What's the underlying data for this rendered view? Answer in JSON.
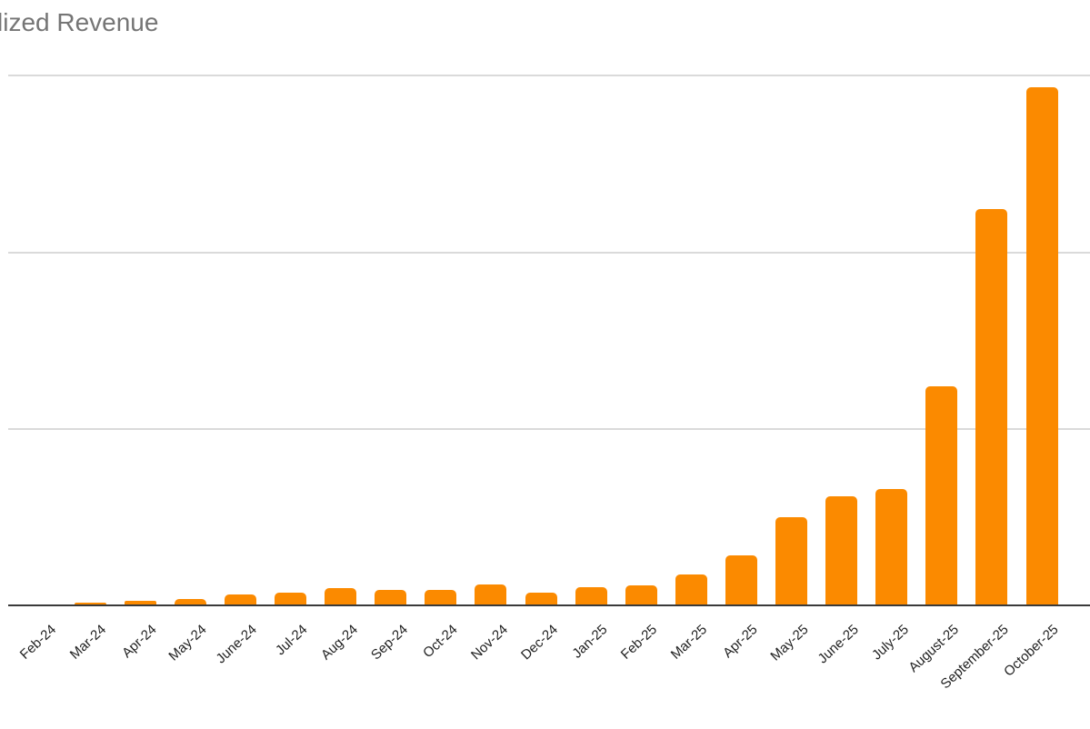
{
  "title": {
    "text": "lized Revenue",
    "color": "#757575"
  },
  "chart_data": {
    "type": "bar",
    "title": "lized Revenue",
    "categories": [
      "Feb-24",
      "Mar-24",
      "Apr-24",
      "May-24",
      "June-24",
      "Jul-24",
      "Aug-24",
      "Sep-24",
      "Oct-24",
      "Nov-24",
      "Dec-24",
      "Jan-25",
      "Feb-25",
      "Mar-25",
      "Apr-25",
      "May-25",
      "June-25",
      "July-25",
      "August-25",
      "September-25",
      "October-25"
    ],
    "values": [
      0,
      0.01,
      0.021,
      0.031,
      0.057,
      0.067,
      0.093,
      0.082,
      0.082,
      0.113,
      0.067,
      0.098,
      0.108,
      0.17,
      0.278,
      0.494,
      0.613,
      0.654,
      1.236,
      2.24,
      2.93
    ],
    "xlabel": "",
    "ylabel": "",
    "ylim": [
      0,
      3.1
    ],
    "grid": "horizontal",
    "gridline_values": [
      1,
      2,
      3
    ],
    "y_tick_labels_visible": false,
    "legend": "none",
    "bar_color": "#FB8A00",
    "axis_color": "#3A3A3A",
    "gridline_color": "#DADADA",
    "tick_label_color": "#1F1F1F"
  }
}
